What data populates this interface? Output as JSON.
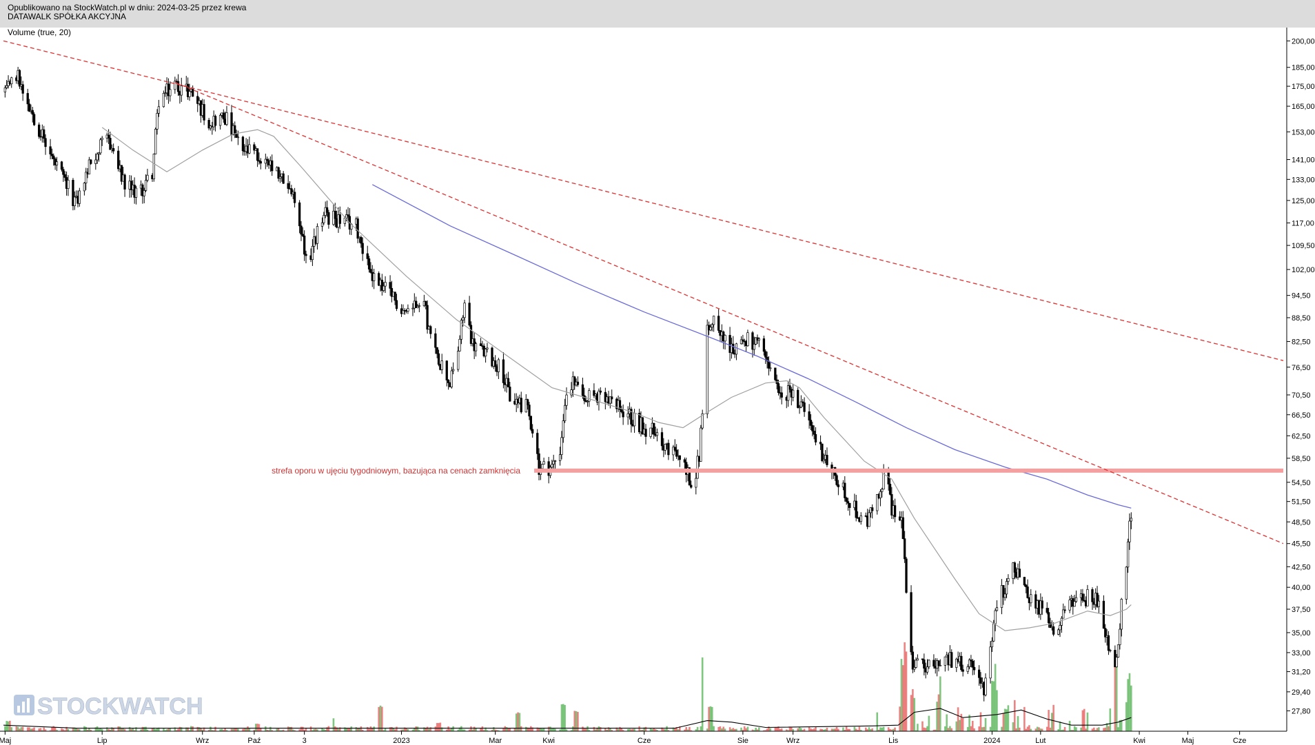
{
  "header": {
    "published_line": "Opublikowano na StockWatch.pl w dniu: 2024-03-25 przez krewa",
    "company_name": "DATAWALK SPÓŁKA AKCYJNA"
  },
  "watermark": {
    "text": "STOCKWATCH"
  },
  "chart_data": {
    "type": "candlestick",
    "indicator_label": "Volume (true, 20)",
    "y_scale": "log",
    "ylim": [
      26.5,
      203
    ],
    "x_range": [
      "2022-05-01",
      "2024-06-30"
    ],
    "y_ticks": [
      "200,00",
      "185,00",
      "175,00",
      "165,00",
      "153,00",
      "141,00",
      "133,00",
      "125,00",
      "117,00",
      "109,50",
      "102,00",
      "94,50",
      "88,50",
      "82,50",
      "76,50",
      "70,50",
      "66,50",
      "62,50",
      "58,50",
      "54,50",
      "51,50",
      "48,50",
      "45,50",
      "42,50",
      "40,00",
      "37,50",
      "35,00",
      "33,00",
      "31,20",
      "29,40",
      "27,80"
    ],
    "x_ticks": [
      {
        "label": "Maj",
        "date": "2022-05-02"
      },
      {
        "label": "Lip",
        "date": "2022-07-01"
      },
      {
        "label": "Wrz",
        "date": "2022-09-01"
      },
      {
        "label": "Paź",
        "date": "2022-10-03"
      },
      {
        "label": "3",
        "date": "2022-11-03"
      },
      {
        "label": "2023",
        "date": "2023-01-02"
      },
      {
        "label": "Mar",
        "date": "2023-03-01"
      },
      {
        "label": "Kwi",
        "date": "2023-04-03"
      },
      {
        "label": "Cze",
        "date": "2023-06-01"
      },
      {
        "label": "Sie",
        "date": "2023-08-01"
      },
      {
        "label": "Wrz",
        "date": "2023-09-01"
      },
      {
        "label": "Lis",
        "date": "2023-11-02"
      },
      {
        "label": "2024",
        "date": "2024-01-02"
      },
      {
        "label": "Lut",
        "date": "2024-02-01"
      },
      {
        "label": "Kwi",
        "date": "2024-04-02"
      },
      {
        "label": "Maj",
        "date": "2024-05-02"
      },
      {
        "label": "Cze",
        "date": "2024-06-03"
      }
    ],
    "price_path": [
      [
        "2022-05-01",
        172
      ],
      [
        "2022-05-10",
        180
      ],
      [
        "2022-05-20",
        160
      ],
      [
        "2022-06-01",
        140
      ],
      [
        "2022-06-15",
        124
      ],
      [
        "2022-06-25",
        142
      ],
      [
        "2022-07-05",
        150
      ],
      [
        "2022-07-15",
        130
      ],
      [
        "2022-07-25",
        128
      ],
      [
        "2022-08-01",
        136
      ],
      [
        "2022-08-05",
        168
      ],
      [
        "2022-08-15",
        176
      ],
      [
        "2022-08-25",
        172
      ],
      [
        "2022-09-05",
        158
      ],
      [
        "2022-09-15",
        160
      ],
      [
        "2022-09-25",
        145
      ],
      [
        "2022-10-05",
        143
      ],
      [
        "2022-10-15",
        136
      ],
      [
        "2022-10-25",
        130
      ],
      [
        "2022-11-01",
        115
      ],
      [
        "2022-11-05",
        103
      ],
      [
        "2022-11-10",
        112
      ],
      [
        "2022-11-15",
        120
      ],
      [
        "2022-11-25",
        118
      ],
      [
        "2022-12-05",
        116
      ],
      [
        "2022-12-15",
        100
      ],
      [
        "2022-12-25",
        95
      ],
      [
        "2023-01-05",
        90
      ],
      [
        "2023-01-15",
        95
      ],
      [
        "2023-01-20",
        83
      ],
      [
        "2023-02-01",
        73
      ],
      [
        "2023-02-05",
        78
      ],
      [
        "2023-02-10",
        92
      ],
      [
        "2023-02-15",
        82
      ],
      [
        "2023-02-25",
        79
      ],
      [
        "2023-03-05",
        76
      ],
      [
        "2023-03-10",
        70
      ],
      [
        "2023-03-20",
        68
      ],
      [
        "2023-03-25",
        63
      ],
      [
        "2023-03-28",
        57
      ],
      [
        "2023-04-05",
        57
      ],
      [
        "2023-04-10",
        60
      ],
      [
        "2023-04-15",
        74
      ],
      [
        "2023-04-25",
        71
      ],
      [
        "2023-05-10",
        69
      ],
      [
        "2023-05-20",
        67
      ],
      [
        "2023-06-01",
        64
      ],
      [
        "2023-06-10",
        63
      ],
      [
        "2023-06-15",
        60
      ],
      [
        "2023-06-25",
        58
      ],
      [
        "2023-07-01",
        54
      ],
      [
        "2023-07-05",
        59
      ],
      [
        "2023-07-10",
        85
      ],
      [
        "2023-07-15",
        88
      ],
      [
        "2023-07-25",
        80
      ],
      [
        "2023-08-01",
        83
      ],
      [
        "2023-08-10",
        82
      ],
      [
        "2023-08-20",
        74
      ],
      [
        "2023-08-25",
        69
      ],
      [
        "2023-09-01",
        72
      ],
      [
        "2023-09-10",
        65
      ],
      [
        "2023-09-15",
        62
      ],
      [
        "2023-09-25",
        56
      ],
      [
        "2023-10-05",
        52
      ],
      [
        "2023-10-15",
        48
      ],
      [
        "2023-10-20",
        50
      ],
      [
        "2023-10-25",
        54
      ],
      [
        "2023-10-28",
        56
      ],
      [
        "2023-11-01",
        50
      ],
      [
        "2023-11-07",
        48
      ],
      [
        "2023-11-10",
        40
      ],
      [
        "2023-11-14",
        32
      ],
      [
        "2023-11-25",
        31.5
      ],
      [
        "2023-12-05",
        32.5
      ],
      [
        "2023-12-15",
        32
      ],
      [
        "2023-12-25",
        31
      ],
      [
        "2023-12-28",
        29.8
      ],
      [
        "2024-01-01",
        33
      ],
      [
        "2024-01-05",
        38
      ],
      [
        "2024-01-15",
        42.5
      ],
      [
        "2024-01-25",
        39
      ],
      [
        "2024-02-05",
        37
      ],
      [
        "2024-02-10",
        35
      ],
      [
        "2024-02-15",
        37.5
      ],
      [
        "2024-02-25",
        38.5
      ],
      [
        "2024-03-05",
        39
      ],
      [
        "2024-03-10",
        36.5
      ],
      [
        "2024-03-15",
        33
      ],
      [
        "2024-03-18",
        31
      ],
      [
        "2024-03-22",
        38
      ],
      [
        "2024-03-25",
        43
      ],
      [
        "2024-03-28",
        50
      ]
    ],
    "ma_gray_path": [
      [
        "2022-07-01",
        155
      ],
      [
        "2022-07-20",
        145
      ],
      [
        "2022-08-10",
        136
      ],
      [
        "2022-09-01",
        145
      ],
      [
        "2022-09-20",
        152
      ],
      [
        "2022-10-05",
        154
      ],
      [
        "2022-10-15",
        151
      ],
      [
        "2022-11-01",
        138
      ],
      [
        "2022-12-01",
        117
      ],
      [
        "2023-01-05",
        100
      ],
      [
        "2023-02-05",
        88
      ],
      [
        "2023-03-05",
        80
      ],
      [
        "2023-04-05",
        72
      ],
      [
        "2023-04-25",
        70
      ],
      [
        "2023-05-25",
        67
      ],
      [
        "2023-06-10",
        65
      ],
      [
        "2023-06-25",
        64
      ],
      [
        "2023-07-10",
        67
      ],
      [
        "2023-07-25",
        70
      ],
      [
        "2023-08-15",
        73
      ],
      [
        "2023-08-28",
        73.5
      ],
      [
        "2023-09-05",
        72
      ],
      [
        "2023-09-20",
        66
      ],
      [
        "2023-10-15",
        58
      ],
      [
        "2023-11-01",
        55
      ],
      [
        "2023-11-15",
        49
      ],
      [
        "2023-12-10",
        41
      ],
      [
        "2023-12-25",
        37
      ],
      [
        "2024-01-10",
        35.2
      ],
      [
        "2024-01-25",
        35.5
      ],
      [
        "2024-02-10",
        36
      ],
      [
        "2024-03-01",
        37.3
      ],
      [
        "2024-03-15",
        36.8
      ],
      [
        "2024-03-25",
        37.5
      ],
      [
        "2024-03-28",
        38
      ]
    ],
    "ma_blue_path": [
      [
        "2022-12-15",
        131
      ],
      [
        "2023-02-01",
        116
      ],
      [
        "2023-03-15",
        106
      ],
      [
        "2023-04-20",
        98
      ],
      [
        "2023-06-01",
        90
      ],
      [
        "2023-07-15",
        83
      ],
      [
        "2023-08-10",
        79
      ],
      [
        "2023-09-10",
        74
      ],
      [
        "2023-10-10",
        69
      ],
      [
        "2023-11-10",
        64
      ],
      [
        "2023-12-10",
        60
      ],
      [
        "2024-01-10",
        57
      ],
      [
        "2024-02-05",
        55
      ],
      [
        "2024-03-01",
        52.5
      ],
      [
        "2024-03-20",
        51
      ],
      [
        "2024-03-28",
        50.5
      ]
    ],
    "trendlines": [
      {
        "style": "dashed",
        "color": "#e03030",
        "points": [
          [
            "2022-05-01",
            200
          ],
          [
            "2024-06-30",
            78
          ]
        ]
      },
      {
        "style": "dashed",
        "color": "#e03030",
        "points": [
          [
            "2022-08-15",
            177
          ],
          [
            "2024-06-30",
            45.5
          ]
        ]
      }
    ],
    "resistance_zone": {
      "label": "strefa oporu w ujęciu tygodniowym, bazująca na cenach zamknięcia",
      "price": 56.4,
      "from": "2023-03-25",
      "to": "2024-06-30",
      "color": "#f5a0a0"
    },
    "colors": {
      "candle_up": "#ffffff",
      "candle_down": "#000000",
      "volume_up": "#2ca02c",
      "volume_down": "#e03030",
      "ma_gray": "#a0a0a0",
      "ma_blue": "#6a6ad8",
      "trendline": "#e03030",
      "resistance": "#f5a0a0"
    },
    "volume": {
      "baseline_level": 0.04,
      "spikes": [
        {
          "date": "2022-05-04",
          "level": 0.14
        },
        {
          "date": "2022-10-05",
          "level": 0.1
        },
        {
          "date": "2022-11-20",
          "level": 0.18
        },
        {
          "date": "2022-12-20",
          "level": 0.35
        },
        {
          "date": "2023-01-25",
          "level": 0.12
        },
        {
          "date": "2023-03-15",
          "level": 0.25
        },
        {
          "date": "2023-04-12",
          "level": 0.38
        },
        {
          "date": "2023-04-20",
          "level": 0.28
        },
        {
          "date": "2023-07-08",
          "level": 0.98
        },
        {
          "date": "2023-07-12",
          "level": 0.35
        },
        {
          "date": "2023-10-22",
          "level": 0.25
        },
        {
          "date": "2023-11-08",
          "level": 0.95
        },
        {
          "date": "2023-11-10",
          "level": 0.82
        },
        {
          "date": "2023-11-14",
          "level": 0.48
        },
        {
          "date": "2023-11-30",
          "level": 0.42
        },
        {
          "date": "2024-01-03",
          "level": 0.7
        },
        {
          "date": "2024-01-06",
          "level": 0.58
        },
        {
          "date": "2024-03-18",
          "level": 0.62
        },
        {
          "date": "2024-03-24",
          "level": 0.42
        },
        {
          "date": "2024-03-27",
          "level": 0.55
        }
      ],
      "ma_path": [
        [
          "2022-05-01",
          0.08
        ],
        [
          "2022-06-15",
          0.04
        ],
        [
          "2023-06-20",
          0.04
        ],
        [
          "2023-07-10",
          0.14
        ],
        [
          "2023-07-25",
          0.12
        ],
        [
          "2023-08-15",
          0.05
        ],
        [
          "2023-10-20",
          0.07
        ],
        [
          "2023-11-05",
          0.08
        ],
        [
          "2023-11-15",
          0.25
        ],
        [
          "2023-12-01",
          0.3
        ],
        [
          "2023-12-15",
          0.18
        ],
        [
          "2024-01-05",
          0.22
        ],
        [
          "2024-01-20",
          0.28
        ],
        [
          "2024-02-05",
          0.16
        ],
        [
          "2024-02-20",
          0.08
        ],
        [
          "2024-03-10",
          0.08
        ],
        [
          "2024-03-20",
          0.12
        ],
        [
          "2024-03-28",
          0.18
        ]
      ]
    }
  }
}
